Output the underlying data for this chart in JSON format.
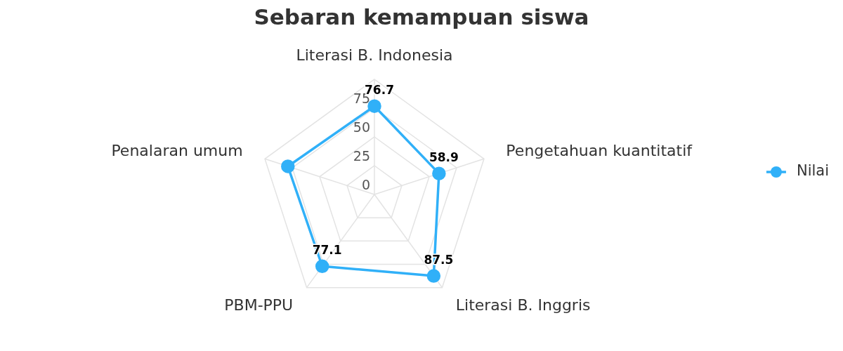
{
  "chart_data": {
    "type": "radar",
    "title": "Sebaran kemampuan siswa",
    "categories": [
      "Literasi B. Indonesia",
      "Pengetahuan kuantitatif",
      "Literasi B. Inggris",
      "PBM-PPU",
      "Penalaran umum"
    ],
    "series": [
      {
        "name": "Nilai",
        "color": "#30b0f8",
        "values": [
          76.7,
          58.9,
          87.5,
          77.1,
          79
        ],
        "value_labels": [
          "76.7",
          "58.9",
          "87.5",
          "77.1",
          null
        ]
      }
    ],
    "ylim": [
      0,
      100
    ],
    "yticks": [
      0,
      25,
      50,
      75
    ],
    "grid": true,
    "legend": "right",
    "marker": "circle"
  }
}
